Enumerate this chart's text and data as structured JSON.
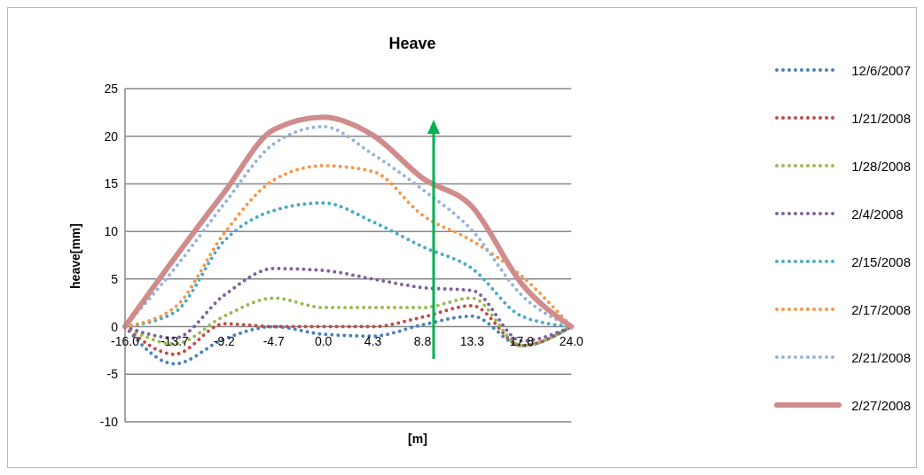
{
  "chart_data": {
    "type": "line",
    "title": "Heave",
    "xlabel": "[m]",
    "ylabel": "heave[mm]",
    "categories": [
      "-16.0",
      "-13.7",
      "-9.2",
      "-4.7",
      "0.0",
      "4.3",
      "8.8",
      "13.3",
      "17.8",
      "24.0"
    ],
    "series": [
      {
        "name": "12/6/2007",
        "color": "#4a7ebb",
        "line_style": "dotted",
        "values": [
          0,
          -3.9,
          -1.3,
          0,
          -0.8,
          -1.0,
          0.2,
          1.1,
          -2.0,
          0
        ]
      },
      {
        "name": "1/21/2008",
        "color": "#be4b48",
        "line_style": "dotted",
        "values": [
          0,
          -2.9,
          0.3,
          0,
          0,
          0,
          1.0,
          2.2,
          -2.0,
          0
        ]
      },
      {
        "name": "1/28/2008",
        "color": "#98b954",
        "line_style": "dotted",
        "values": [
          0,
          -1.8,
          1.1,
          3.0,
          2.0,
          2.0,
          2.0,
          3.0,
          -2.0,
          0
        ]
      },
      {
        "name": "2/4/2008",
        "color": "#7d60a0",
        "line_style": "dotted",
        "values": [
          0,
          -1.2,
          3.3,
          6.1,
          5.9,
          5.0,
          4.1,
          3.8,
          -1.5,
          0
        ]
      },
      {
        "name": "2/15/2008",
        "color": "#46aac5",
        "line_style": "dotted",
        "values": [
          0,
          1.5,
          9.0,
          12.2,
          13.0,
          11.0,
          8.4,
          6.1,
          1.1,
          0
        ]
      },
      {
        "name": "2/17/2008",
        "color": "#f79646",
        "line_style": "dotted",
        "values": [
          0,
          2.0,
          9.8,
          15.4,
          16.9,
          16.3,
          11.7,
          9.0,
          5.3,
          0
        ]
      },
      {
        "name": "2/21/2008",
        "color": "#95b3d7",
        "line_style": "dotted",
        "values": [
          0,
          6.1,
          12.9,
          19.2,
          21.0,
          18.1,
          14.4,
          10.1,
          3.3,
          0
        ]
      },
      {
        "name": "2/27/2008",
        "color": "#d08c8c",
        "line_style": "solid",
        "values": [
          0,
          7.2,
          14.1,
          20.7,
          22.0,
          20.1,
          15.6,
          12.6,
          4.5,
          0
        ]
      }
    ],
    "ylim": [
      -10,
      25
    ],
    "yticks": [
      -10,
      -5,
      0,
      5,
      10,
      15,
      20,
      25
    ],
    "grid": "y",
    "legend": "right"
  }
}
